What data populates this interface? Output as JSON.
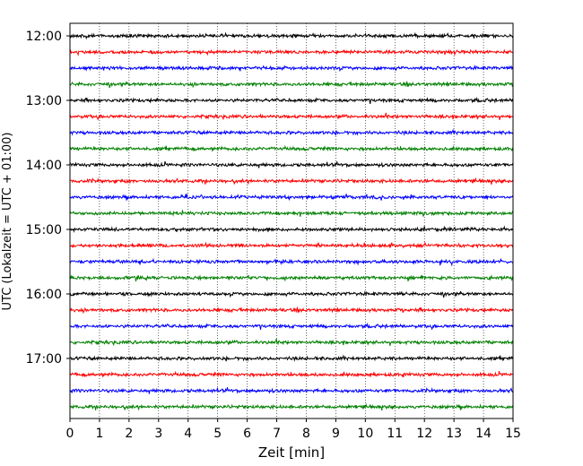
{
  "chart_data": {
    "type": "line",
    "title": "",
    "xlabel": "Zeit  [min]",
    "ylabel": "UTC (Lokalzeit = UTC + 01:00)",
    "xlim": [
      0,
      15
    ],
    "x_ticks": [
      0,
      1,
      2,
      3,
      4,
      5,
      6,
      7,
      8,
      9,
      10,
      11,
      12,
      13,
      14,
      15
    ],
    "y_tick_labels": [
      "12:00",
      "13:00",
      "14:00",
      "15:00",
      "16:00",
      "17:00"
    ],
    "grid": "vertical dotted at each minute",
    "traces_per_hour": 4,
    "trace_minutes_each": 15,
    "trace_colors": [
      "#000000",
      "#ff0000",
      "#0000ff",
      "#008000"
    ],
    "traces": [
      {
        "start": "12:00",
        "color": "#000000"
      },
      {
        "start": "12:15",
        "color": "#ff0000"
      },
      {
        "start": "12:30",
        "color": "#0000ff"
      },
      {
        "start": "12:45",
        "color": "#008000"
      },
      {
        "start": "13:00",
        "color": "#000000"
      },
      {
        "start": "13:15",
        "color": "#ff0000"
      },
      {
        "start": "13:30",
        "color": "#0000ff"
      },
      {
        "start": "13:45",
        "color": "#008000"
      },
      {
        "start": "14:00",
        "color": "#000000"
      },
      {
        "start": "14:15",
        "color": "#ff0000"
      },
      {
        "start": "14:30",
        "color": "#0000ff"
      },
      {
        "start": "14:45",
        "color": "#008000"
      },
      {
        "start": "15:00",
        "color": "#000000"
      },
      {
        "start": "15:15",
        "color": "#ff0000"
      },
      {
        "start": "15:30",
        "color": "#0000ff"
      },
      {
        "start": "15:45",
        "color": "#008000"
      },
      {
        "start": "16:00",
        "color": "#000000"
      },
      {
        "start": "16:15",
        "color": "#ff0000"
      },
      {
        "start": "16:30",
        "color": "#0000ff"
      },
      {
        "start": "16:45",
        "color": "#008000"
      },
      {
        "start": "17:00",
        "color": "#000000"
      },
      {
        "start": "17:15",
        "color": "#ff0000"
      },
      {
        "start": "17:30",
        "color": "#0000ff"
      },
      {
        "start": "17:45",
        "color": "#008000"
      }
    ]
  }
}
